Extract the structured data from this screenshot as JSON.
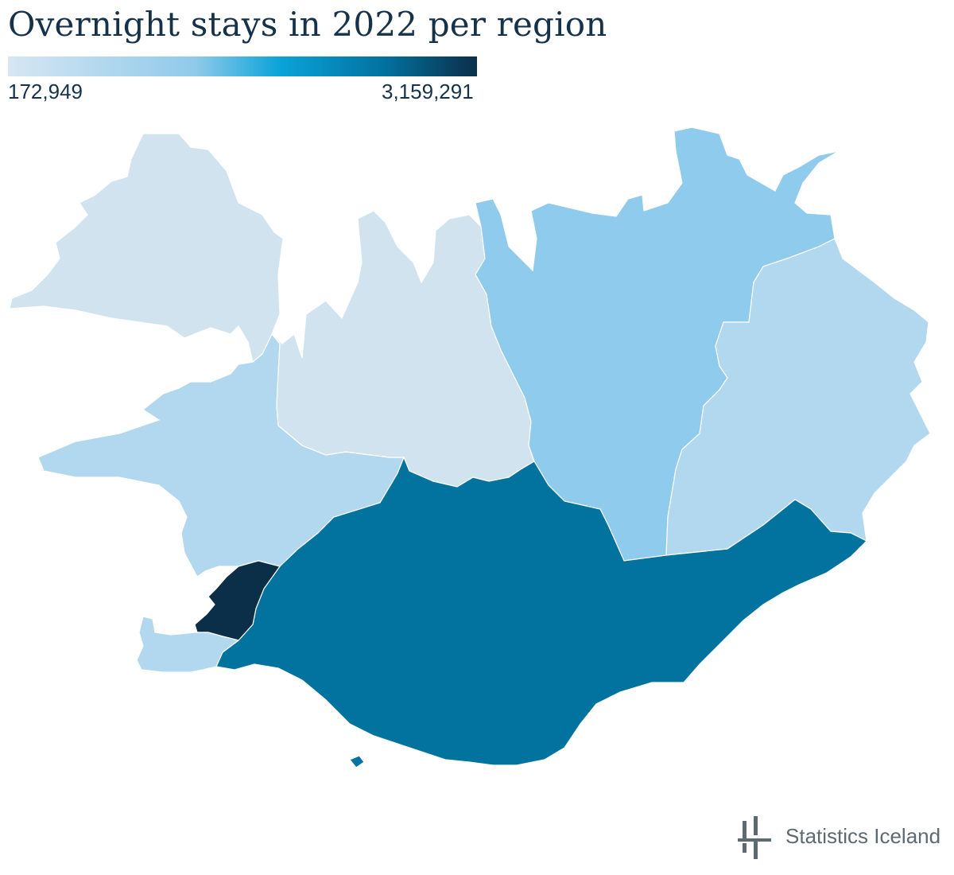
{
  "title": "Overnight stays in 2022 per region",
  "legend": {
    "min_label": "172,949",
    "max_label": "3,159,291",
    "min_value": 172949,
    "max_value": 3159291,
    "colors": [
      "#d6e6f3",
      "#8fcaea",
      "#0aa3d8",
      "#0272a0",
      "#0b2f49"
    ]
  },
  "regions": [
    {
      "id": "westfjords",
      "fill": "#d2e3f0"
    },
    {
      "id": "west",
      "fill": "#b2d8ef"
    },
    {
      "id": "northwest",
      "fill": "#d2e3f0"
    },
    {
      "id": "northeast",
      "fill": "#8fcbec"
    },
    {
      "id": "east",
      "fill": "#b2d8ef"
    },
    {
      "id": "south",
      "fill": "#02739f"
    },
    {
      "id": "capital",
      "fill": "#0b2f49"
    },
    {
      "id": "southern-peninsula",
      "fill": "#b2d8ef"
    }
  ],
  "source": "Statistics Iceland",
  "logo_color": "#5d6a72"
}
